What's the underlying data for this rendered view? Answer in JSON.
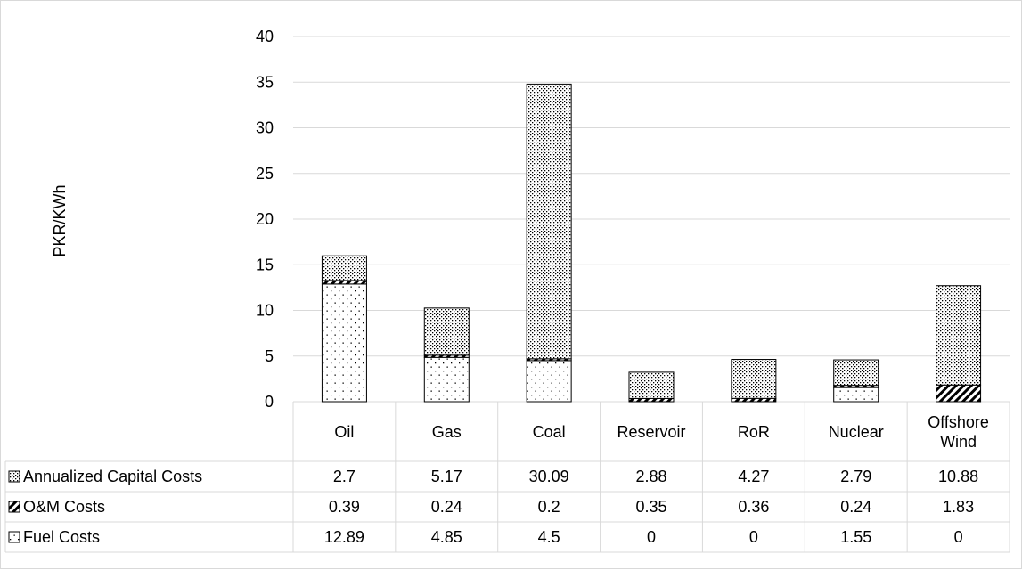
{
  "chart_data": {
    "type": "bar",
    "stacked": true,
    "ylabel": "PKR/KWh",
    "ylim": [
      0,
      40
    ],
    "yticks": [
      0,
      5,
      10,
      15,
      20,
      25,
      30,
      35,
      40
    ],
    "grid": true,
    "legend": "data-table",
    "categories": [
      "Oil",
      "Gas",
      "Coal",
      "Reservoir",
      "RoR",
      "Nuclear",
      "Offshore Wind"
    ],
    "series": [
      {
        "name": "Annualized Capital Costs",
        "values": [
          2.7,
          5.17,
          30.09,
          2.88,
          4.27,
          2.79,
          10.88
        ],
        "pattern": "dense-dots"
      },
      {
        "name": "O&M Costs",
        "values": [
          0.39,
          0.24,
          0.2,
          0.35,
          0.36,
          0.24,
          1.83
        ],
        "pattern": "diagonal-stripes"
      },
      {
        "name": "Fuel Costs",
        "values": [
          12.89,
          4.85,
          4.5,
          0,
          0,
          1.55,
          0
        ],
        "pattern": "sparse-dots"
      }
    ],
    "table_labels": [
      [
        "2.7",
        "5.17",
        "30.09",
        "2.88",
        "4.27",
        "2.79",
        "10.88"
      ],
      [
        "0.39",
        "0.24",
        "0.2",
        "0.35",
        "0.36",
        "0.24",
        "1.83"
      ],
      [
        "12.89",
        "4.85",
        "4.5",
        "0",
        "0",
        "1.55",
        "0"
      ]
    ],
    "colors": {
      "grid": "#d9d9d9",
      "stroke": "#000000",
      "background": "#ffffff"
    }
  }
}
